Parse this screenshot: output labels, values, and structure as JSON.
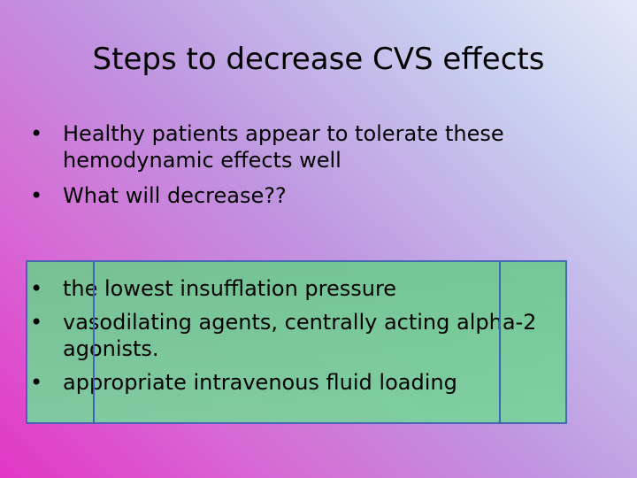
{
  "slide": {
    "title": "Steps to decrease CVS effects",
    "bullet_symbol": "•",
    "top_bullets": [
      "Healthy patients appear to tolerate these hemodynamic effects well",
      "What will decrease??"
    ],
    "bottom_bullets": [
      "the lowest insufflation pressure",
      "vasodilating agents, centrally acting alpha-2 agonists.",
      "appropriate intravenous fluid loading"
    ],
    "colors": {
      "highlight_box": "#79d39e",
      "box_border": "#3d66b0"
    }
  }
}
